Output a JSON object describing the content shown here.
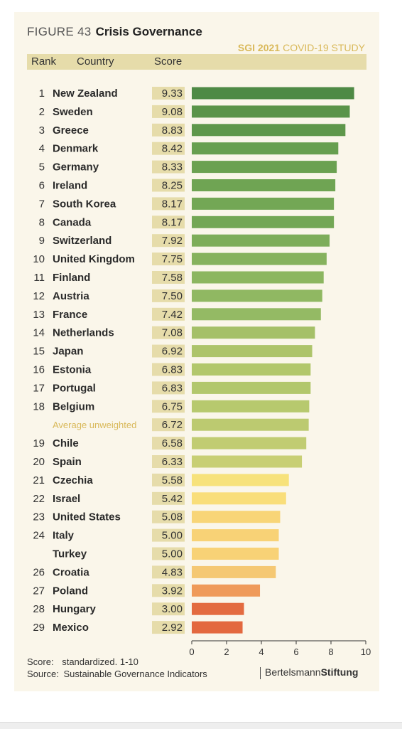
{
  "figure": {
    "number": "FIGURE 43",
    "title": "Crisis Governance",
    "study_bold": "SGI 2021",
    "study_light": "COVID-19 STUDY"
  },
  "header": {
    "rank": "Rank",
    "country": "Country",
    "score": "Score"
  },
  "footer": {
    "score_label": "Score:",
    "score_text": "standardized. 1-10",
    "source_label": "Source:",
    "source_text": "Sustainable Governance Indicators",
    "brand_light": "Bertelsmann",
    "brand_bold": "Stiftung"
  },
  "colors": {
    "card_bg": "#faf6ea",
    "score_chip": "#e6dcaa",
    "highlight_text": "#d9b95a"
  },
  "chart_data": {
    "type": "bar",
    "orientation": "horizontal",
    "xlim": [
      0,
      10
    ],
    "xticks": [
      0,
      2,
      4,
      6,
      8,
      10
    ],
    "rows": [
      {
        "rank": "1",
        "country": "New Zealand",
        "value": 9.33,
        "label": "9.33",
        "color": "#4e8a45"
      },
      {
        "rank": "2",
        "country": "Sweden",
        "value": 9.08,
        "label": "9.08",
        "color": "#5a9449"
      },
      {
        "rank": "3",
        "country": "Greece",
        "value": 8.83,
        "label": "8.83",
        "color": "#5e974b"
      },
      {
        "rank": "4",
        "country": "Denmark",
        "value": 8.42,
        "label": "8.42",
        "color": "#679f4f"
      },
      {
        "rank": "5",
        "country": "Germany",
        "value": 8.33,
        "label": "8.33",
        "color": "#6ba151"
      },
      {
        "rank": "6",
        "country": "Ireland",
        "value": 8.25,
        "label": "8.25",
        "color": "#6fa453"
      },
      {
        "rank": "7",
        "country": "South Korea",
        "value": 8.17,
        "label": "8.17",
        "color": "#73a755"
      },
      {
        "rank": "8",
        "country": "Canada",
        "value": 8.17,
        "label": "8.17",
        "color": "#73a755"
      },
      {
        "rank": "9",
        "country": "Switzerland",
        "value": 7.92,
        "label": "7.92",
        "color": "#7dad59"
      },
      {
        "rank": "10",
        "country": "United Kingdom",
        "value": 7.75,
        "label": "7.75",
        "color": "#86b25d"
      },
      {
        "rank": "11",
        "country": "Finland",
        "value": 7.58,
        "label": "7.58",
        "color": "#8cb660"
      },
      {
        "rank": "12",
        "country": "Austria",
        "value": 7.5,
        "label": "7.50",
        "color": "#90b862"
      },
      {
        "rank": "13",
        "country": "France",
        "value": 7.42,
        "label": "7.42",
        "color": "#94ba64"
      },
      {
        "rank": "14",
        "country": "Netherlands",
        "value": 7.08,
        "label": "7.08",
        "color": "#a5c068"
      },
      {
        "rank": "15",
        "country": "Japan",
        "value": 6.92,
        "label": "6.92",
        "color": "#adc46a"
      },
      {
        "rank": "16",
        "country": "Estonia",
        "value": 6.83,
        "label": "6.83",
        "color": "#b2c76c"
      },
      {
        "rank": "17",
        "country": "Portugal",
        "value": 6.83,
        "label": "6.83",
        "color": "#b2c76c"
      },
      {
        "rank": "18",
        "country": "Belgium",
        "value": 6.75,
        "label": "6.75",
        "color": "#b7c96e"
      },
      {
        "rank": "",
        "country": "Average unweighted",
        "value": 6.72,
        "label": "6.72",
        "color": "#bcca70",
        "average": true
      },
      {
        "rank": "19",
        "country": "Chile",
        "value": 6.58,
        "label": "6.58",
        "color": "#c1cc72"
      },
      {
        "rank": "20",
        "country": "Spain",
        "value": 6.33,
        "label": "6.33",
        "color": "#c8cf74"
      },
      {
        "rank": "21",
        "country": "Czechia",
        "value": 5.58,
        "label": "5.58",
        "color": "#f7e27b"
      },
      {
        "rank": "22",
        "country": "Israel",
        "value": 5.42,
        "label": "5.42",
        "color": "#f9de7a"
      },
      {
        "rank": "23",
        "country": "United States",
        "value": 5.08,
        "label": "5.08",
        "color": "#f8d577"
      },
      {
        "rank": "24",
        "country": "Italy",
        "value": 5.0,
        "label": "5.00",
        "color": "#f8d276"
      },
      {
        "rank": "",
        "country": "Turkey",
        "value": 5.0,
        "label": "5.00",
        "color": "#f8d276"
      },
      {
        "rank": "26",
        "country": "Croatia",
        "value": 4.83,
        "label": "4.83",
        "color": "#f5c873"
      },
      {
        "rank": "27",
        "country": "Poland",
        "value": 3.92,
        "label": "3.92",
        "color": "#ef9a5a"
      },
      {
        "rank": "28",
        "country": "Hungary",
        "value": 3.0,
        "label": "3.00",
        "color": "#e36b40"
      },
      {
        "rank": "29",
        "country": "Mexico",
        "value": 2.92,
        "label": "2.92",
        "color": "#e3683f"
      }
    ]
  }
}
